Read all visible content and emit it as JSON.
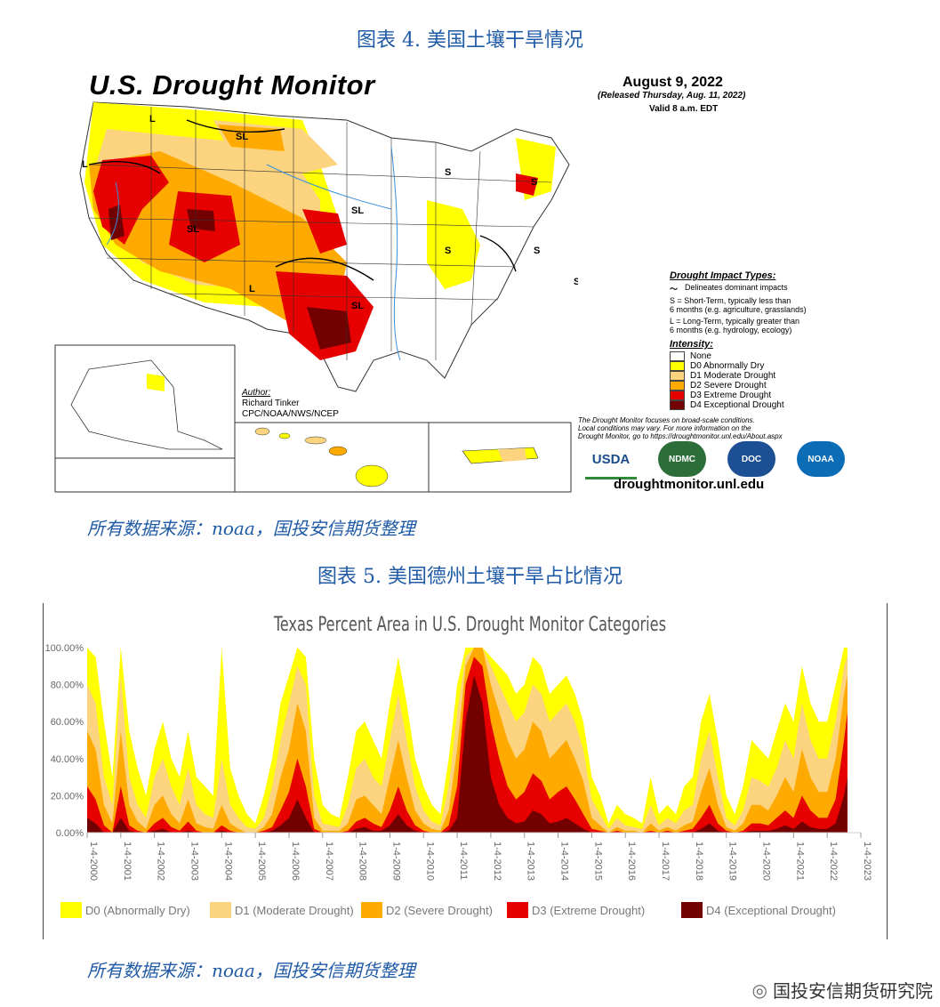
{
  "figure4": {
    "caption": "图表 4. 美国土壤干旱情况",
    "title": "U.S. Drought Monitor",
    "date": "August 9, 2022",
    "released": "(Released Thursday, Aug. 11, 2022)",
    "valid": "Valid 8 a.m. EDT",
    "impact_title": "Drought Impact Types:",
    "impact_lines": [
      "Delineates dominant impacts",
      "S = Short-Term, typically less than",
      "6 months (e.g. agriculture, grasslands)",
      "L = Long-Term, typically greater than",
      "6 months (e.g. hydrology, ecology)"
    ],
    "intensity_title": "Intensity:",
    "intensity": [
      {
        "label": "None",
        "color": "#ffffff"
      },
      {
        "label": "D0 Abnormally Dry",
        "color": "#ffff00"
      },
      {
        "label": "D1 Moderate Drought",
        "color": "#fcd37f"
      },
      {
        "label": "D2 Severe Drought",
        "color": "#ffaa00"
      },
      {
        "label": "D3 Extreme Drought",
        "color": "#e60000"
      },
      {
        "label": "D4 Exceptional Drought",
        "color": "#730000"
      }
    ],
    "author_label": "Author:",
    "author_name": "Richard Tinker",
    "author_org": "CPC/NOAA/NWS/NCEP",
    "disclaimer": [
      "The Drought Monitor focuses on broad-scale conditions.",
      "Local conditions may vary. For more information on the",
      "Drought Monitor, go to https://droughtmonitor.unl.edu/About.aspx"
    ],
    "logos": [
      "USDA",
      "NDMC",
      "DOC",
      "NOAA"
    ],
    "website": "droughtmonitor.unl.edu",
    "map_labels": [
      "L",
      "SL",
      "L",
      "S",
      "S",
      "S",
      "SL",
      "SL",
      "SL",
      "L",
      "SL",
      "S",
      "S",
      "S",
      "SL",
      "S",
      "L",
      "S",
      "SL"
    ],
    "source": "所有数据来源：noaa，国投安信期货整理",
    "source_word": "noaa"
  },
  "figure5": {
    "caption": "图表 5. 美国德州土壤干旱占比情况",
    "source": "所有数据来源：noaa，国投安信期货整理"
  },
  "chart_data": {
    "type": "area",
    "title": "Texas Percent Area in U.S. Drought Monitor Categories",
    "xlabel": "",
    "ylabel": "",
    "ylim": [
      0,
      100
    ],
    "yticks": [
      "0.00%",
      "20.00%",
      "40.00%",
      "60.00%",
      "80.00%",
      "100.00%"
    ],
    "xticks": [
      "1-4-2000",
      "1-4-2001",
      "1-4-2002",
      "1-4-2003",
      "1-4-2004",
      "1-4-2005",
      "1-4-2006",
      "1-4-2007",
      "1-4-2008",
      "1-4-2009",
      "1-4-2010",
      "1-4-2011",
      "1-4-2012",
      "1-4-2013",
      "1-4-2014",
      "1-4-2015",
      "1-4-2016",
      "1-4-2017",
      "1-4-2018",
      "1-4-2019",
      "1-4-2020",
      "1-4-2021",
      "1-4-2022",
      "1-4-2023"
    ],
    "x": [
      2000.0,
      2000.25,
      2000.5,
      2000.75,
      2001.0,
      2001.25,
      2001.5,
      2001.75,
      2002.0,
      2002.25,
      2002.5,
      2002.75,
      2003.0,
      2003.25,
      2003.5,
      2003.75,
      2004.0,
      2004.25,
      2004.5,
      2004.75,
      2005.0,
      2005.25,
      2005.5,
      2005.75,
      2006.0,
      2006.25,
      2006.5,
      2006.75,
      2007.0,
      2007.25,
      2007.5,
      2007.75,
      2008.0,
      2008.25,
      2008.5,
      2008.75,
      2009.0,
      2009.25,
      2009.5,
      2009.75,
      2010.0,
      2010.25,
      2010.5,
      2010.75,
      2011.0,
      2011.25,
      2011.5,
      2011.75,
      2012.0,
      2012.25,
      2012.5,
      2012.75,
      2013.0,
      2013.25,
      2013.5,
      2013.75,
      2014.0,
      2014.25,
      2014.5,
      2014.75,
      2015.0,
      2015.25,
      2015.5,
      2015.75,
      2016.0,
      2016.25,
      2016.5,
      2016.75,
      2017.0,
      2017.25,
      2017.5,
      2017.75,
      2018.0,
      2018.25,
      2018.5,
      2018.75,
      2019.0,
      2019.25,
      2019.5,
      2019.75,
      2020.0,
      2020.25,
      2020.5,
      2020.75,
      2021.0,
      2021.25,
      2021.5,
      2021.75,
      2022.0,
      2022.25,
      2022.5,
      2022.6
    ],
    "series": [
      {
        "name": "D0 (Abnormally Dry)",
        "color": "#ffff00",
        "values": [
          100,
          95,
          60,
          30,
          100,
          55,
          35,
          20,
          45,
          60,
          40,
          30,
          55,
          30,
          25,
          20,
          100,
          35,
          20,
          10,
          5,
          20,
          40,
          70,
          85,
          100,
          95,
          40,
          15,
          10,
          8,
          30,
          55,
          60,
          50,
          40,
          70,
          95,
          70,
          40,
          25,
          15,
          10,
          40,
          80,
          100,
          100,
          100,
          95,
          90,
          85,
          75,
          80,
          95,
          90,
          75,
          80,
          85,
          75,
          60,
          30,
          20,
          5,
          15,
          10,
          8,
          5,
          30,
          10,
          15,
          10,
          25,
          30,
          60,
          75,
          50,
          20,
          10,
          25,
          50,
          45,
          40,
          55,
          70,
          60,
          90,
          70,
          60,
          60,
          80,
          100,
          100
        ]
      },
      {
        "name": "D1 (Moderate Drought)",
        "color": "#fcd37f",
        "values": [
          80,
          70,
          30,
          15,
          85,
          30,
          15,
          8,
          30,
          40,
          25,
          15,
          35,
          15,
          10,
          8,
          40,
          15,
          8,
          3,
          2,
          8,
          25,
          50,
          70,
          90,
          80,
          20,
          5,
          4,
          3,
          15,
          35,
          40,
          30,
          25,
          50,
          75,
          50,
          25,
          12,
          6,
          4,
          25,
          65,
          95,
          100,
          100,
          90,
          80,
          70,
          60,
          65,
          80,
          75,
          60,
          65,
          70,
          60,
          45,
          18,
          10,
          2,
          8,
          4,
          3,
          2,
          15,
          4,
          8,
          5,
          12,
          15,
          40,
          55,
          30,
          8,
          4,
          12,
          30,
          28,
          25,
          35,
          50,
          40,
          70,
          50,
          40,
          40,
          60,
          90,
          95
        ]
      },
      {
        "name": "D2 (Severe Drought)",
        "color": "#ffaa00",
        "values": [
          55,
          45,
          15,
          5,
          55,
          15,
          6,
          2,
          15,
          20,
          10,
          5,
          18,
          5,
          3,
          2,
          15,
          5,
          2,
          0,
          0,
          3,
          10,
          30,
          45,
          70,
          55,
          8,
          1,
          1,
          1,
          5,
          18,
          20,
          15,
          10,
          30,
          50,
          30,
          12,
          5,
          2,
          1,
          12,
          45,
          90,
          100,
          100,
          80,
          65,
          50,
          40,
          45,
          60,
          55,
          40,
          45,
          50,
          40,
          28,
          8,
          4,
          0,
          3,
          1,
          1,
          0,
          5,
          1,
          3,
          1,
          4,
          6,
          22,
          35,
          15,
          3,
          1,
          5,
          15,
          15,
          12,
          20,
          30,
          22,
          45,
          30,
          22,
          22,
          40,
          75,
          85
        ]
      },
      {
        "name": "D3 (Extreme Drought)",
        "color": "#e60000",
        "values": [
          25,
          18,
          4,
          0,
          25,
          4,
          1,
          0,
          5,
          8,
          3,
          1,
          6,
          1,
          0,
          0,
          4,
          1,
          0,
          0,
          0,
          1,
          3,
          12,
          22,
          40,
          25,
          2,
          0,
          0,
          0,
          1,
          6,
          8,
          5,
          3,
          12,
          25,
          12,
          4,
          1,
          0,
          0,
          4,
          25,
          80,
          95,
          90,
          60,
          40,
          25,
          18,
          22,
          32,
          28,
          18,
          22,
          25,
          18,
          10,
          2,
          1,
          0,
          1,
          0,
          0,
          0,
          1,
          0,
          1,
          0,
          1,
          2,
          8,
          15,
          5,
          1,
          0,
          1,
          5,
          5,
          4,
          8,
          12,
          8,
          20,
          12,
          8,
          8,
          18,
          50,
          65
        ]
      },
      {
        "name": "D4 (Exceptional Drought)",
        "color": "#730000",
        "values": [
          8,
          5,
          0,
          0,
          8,
          1,
          0,
          0,
          1,
          2,
          0,
          0,
          1,
          0,
          0,
          0,
          1,
          0,
          0,
          0,
          0,
          0,
          1,
          4,
          8,
          18,
          8,
          0,
          0,
          0,
          0,
          0,
          2,
          3,
          1,
          1,
          4,
          10,
          4,
          1,
          0,
          0,
          0,
          1,
          8,
          60,
          85,
          70,
          30,
          15,
          8,
          5,
          6,
          12,
          10,
          5,
          6,
          8,
          5,
          2,
          0,
          0,
          0,
          0,
          0,
          0,
          0,
          0,
          0,
          0,
          0,
          0,
          0,
          2,
          5,
          1,
          0,
          0,
          0,
          1,
          1,
          1,
          2,
          4,
          2,
          6,
          3,
          2,
          2,
          5,
          20,
          30
        ]
      }
    ],
    "legend_position": "bottom",
    "grid": false
  },
  "footer": {
    "text": "国投安信期货研究院"
  }
}
